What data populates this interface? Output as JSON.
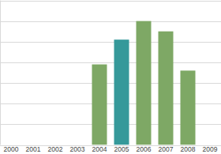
{
  "chart_data": {
    "type": "bar",
    "categories": [
      "2000",
      "2001",
      "2002",
      "2003",
      "2004",
      "2005",
      "2006",
      "2007",
      "2008",
      "2009"
    ],
    "values": [
      null,
      null,
      null,
      null,
      3.9,
      5.1,
      6.0,
      5.5,
      3.6,
      null
    ],
    "colors": [
      "#7ea865",
      "#7ea865",
      "#7ea865",
      "#7ea865",
      "#7ea865",
      "#35999a",
      "#7ea865",
      "#7ea865",
      "#7ea865",
      "#7ea865"
    ],
    "ylim": [
      0,
      7
    ],
    "yticks": [
      0,
      1,
      2,
      3,
      4,
      5,
      6,
      7
    ],
    "grid": true,
    "tick_labels": "x"
  }
}
